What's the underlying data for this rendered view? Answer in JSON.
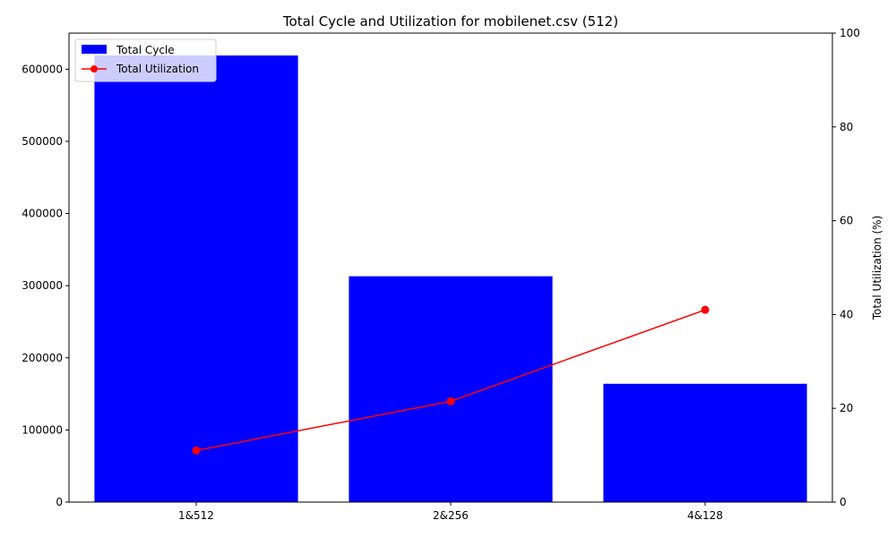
{
  "chart_data": {
    "type": "bar+line",
    "title": "Total Cycle and Utilization for mobilenet.csv (512)",
    "categories": [
      "1&512",
      "2&256",
      "4&128"
    ],
    "xlabel": "",
    "left_axis": {
      "label": "",
      "ylim": [
        0,
        650000
      ],
      "ticks": [
        0,
        100000,
        200000,
        300000,
        400000,
        500000,
        600000
      ]
    },
    "right_axis": {
      "label": "Total Utilization (%)",
      "ylim": [
        0,
        100
      ],
      "ticks": [
        0,
        20,
        40,
        60,
        80,
        100
      ]
    },
    "series": [
      {
        "name": "Total Cycle",
        "kind": "bar",
        "axis": "left",
        "color": "#0000ff",
        "values": [
          619000,
          313000,
          164000
        ]
      },
      {
        "name": "Total Utilization",
        "kind": "line",
        "axis": "right",
        "color": "#ff0000",
        "marker": "circle",
        "values": [
          11,
          21.5,
          41
        ]
      }
    ],
    "legend": "top-left",
    "grid": false
  }
}
